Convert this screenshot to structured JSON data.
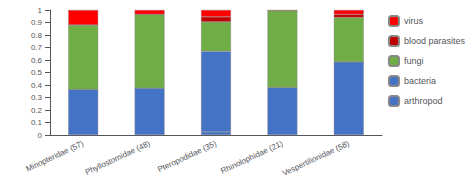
{
  "chart_data": {
    "type": "bar",
    "stacked": true,
    "grid": false,
    "legend": "right",
    "categories": [
      "Minopteridae (57)",
      "Phyllostomidae (48)",
      "Pteropodidae (35)",
      "Rhinolophidae (21)",
      "Vespertilionidae (58)"
    ],
    "series": [
      {
        "name": "arthropod",
        "color": "#4472C4",
        "values": [
          0.365,
          0.375,
          0.025,
          0.38,
          0.585
        ]
      },
      {
        "name": "bacteria",
        "color": "#4472C4",
        "values": [
          0.0,
          0.0,
          0.645,
          0.0,
          0.0
        ]
      },
      {
        "name": "fungi",
        "color": "#70AD47",
        "values": [
          0.515,
          0.59,
          0.235,
          0.615,
          0.355
        ]
      },
      {
        "name": "blood parasites",
        "color": "#C00000",
        "values": [
          0.0,
          0.0,
          0.04,
          0.0,
          0.025
        ]
      },
      {
        "name": "virus",
        "color": "#FF0000",
        "values": [
          0.12,
          0.035,
          0.055,
          0.005,
          0.035
        ]
      }
    ],
    "ylim": [
      0,
      1
    ],
    "yticks": [
      0,
      0.1,
      0.2,
      0.3,
      0.4,
      0.5,
      0.6,
      0.7,
      0.8,
      0.9,
      1
    ]
  }
}
